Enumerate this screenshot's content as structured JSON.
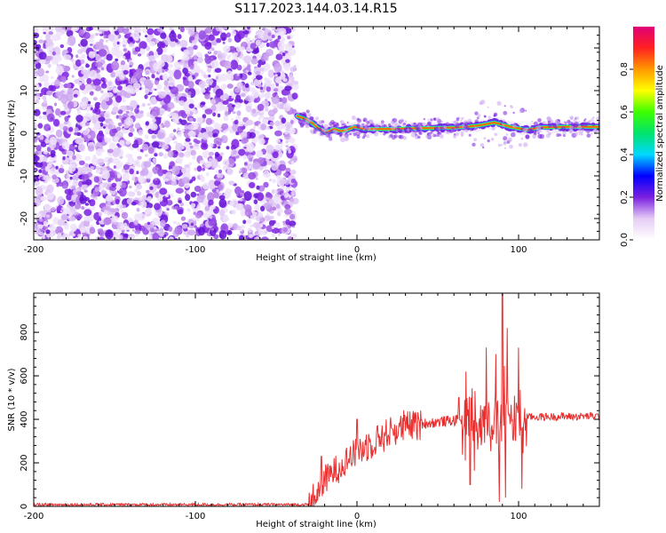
{
  "title": "S117.2023.144.03.14.R15",
  "colors": {
    "snr_line": "#e83030",
    "frame": "#000000"
  },
  "chart_data": [
    {
      "type": "heatmap",
      "xlabel": "Height of straight line (km)",
      "ylabel": "Frequency (Hz)",
      "xlim": [
        -200,
        150
      ],
      "ylim": [
        -25,
        25
      ],
      "xticks": [
        -200,
        -100,
        0,
        100
      ],
      "yticks": [
        -20,
        -10,
        0,
        10,
        20
      ],
      "colorbar": {
        "label": "Normalized spectral amplitude",
        "range": [
          0.0,
          1.0
        ],
        "ticks": [
          0.0,
          0.2,
          0.4,
          0.6,
          0.8
        ],
        "tick_labels": [
          "0.0",
          "0.2",
          "0.4",
          "0.6",
          "0.8"
        ],
        "colormap": [
          "#ffffff",
          "#e6ccf5",
          "#7a1fe0",
          "#0000ff",
          "#00d8ff",
          "#00e36c",
          "#3cff00",
          "#ffff00",
          "#ff9900",
          "#ff2020",
          "#e00078"
        ]
      },
      "noise_region_x": [
        -200,
        -38
      ],
      "signal_ridge": [
        {
          "x": -37,
          "y": 4
        },
        {
          "x": -33,
          "y": 3.5
        },
        {
          "x": -28,
          "y": 2.5
        },
        {
          "x": -24,
          "y": 1.2
        },
        {
          "x": -19,
          "y": 0.2
        },
        {
          "x": -14,
          "y": 1.0
        },
        {
          "x": -10,
          "y": 0.5
        },
        {
          "x": -6,
          "y": 0.8
        },
        {
          "x": -2,
          "y": 1.5
        },
        {
          "x": 5,
          "y": 1.0
        },
        {
          "x": 20,
          "y": 1.0
        },
        {
          "x": 40,
          "y": 1.2
        },
        {
          "x": 60,
          "y": 1.3
        },
        {
          "x": 75,
          "y": 1.8
        },
        {
          "x": 85,
          "y": 2.5
        },
        {
          "x": 95,
          "y": 1.5
        },
        {
          "x": 105,
          "y": 0.8
        },
        {
          "x": 115,
          "y": 1.4
        },
        {
          "x": 130,
          "y": 1.5
        },
        {
          "x": 150,
          "y": 1.5
        }
      ]
    },
    {
      "type": "line",
      "xlabel": "Height of straight line (km)",
      "ylabel": "SNR (10 * v/v)",
      "xlim": [
        -200,
        150
      ],
      "ylim": [
        0,
        980
      ],
      "xticks": [
        -200,
        -100,
        0,
        100
      ],
      "yticks": [
        0,
        200,
        400,
        600,
        800
      ],
      "series": [
        {
          "envelope": [
            {
              "x": -200,
              "y": 8
            },
            {
              "x": -30,
              "y": 8
            },
            {
              "x": -24,
              "y": 60
            },
            {
              "x": -20,
              "y": 120
            },
            {
              "x": -10,
              "y": 190
            },
            {
              "x": 0,
              "y": 250
            },
            {
              "x": 10,
              "y": 300
            },
            {
              "x": 20,
              "y": 340
            },
            {
              "x": 30,
              "y": 365
            },
            {
              "x": 40,
              "y": 380
            },
            {
              "x": 60,
              "y": 395
            },
            {
              "x": 80,
              "y": 405
            },
            {
              "x": 100,
              "y": 410
            },
            {
              "x": 120,
              "y": 412
            },
            {
              "x": 150,
              "y": 415
            }
          ],
          "peaks": [
            {
              "x": -22,
              "y": 230
            },
            {
              "x": 0,
              "y": 400
            },
            {
              "x": 63,
              "y": 500
            },
            {
              "x": 80,
              "y": 730
            },
            {
              "x": 86,
              "y": 700
            },
            {
              "x": 90,
              "y": 975
            },
            {
              "x": 93,
              "y": 820
            },
            {
              "x": 100,
              "y": 730
            }
          ],
          "troughs": [
            {
              "x": 70,
              "y": 100
            },
            {
              "x": 88,
              "y": 20
            },
            {
              "x": 92,
              "y": 40
            },
            {
              "x": 102,
              "y": 80
            }
          ]
        }
      ]
    }
  ]
}
